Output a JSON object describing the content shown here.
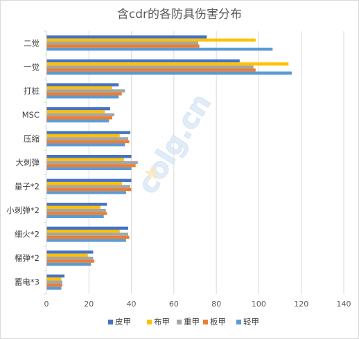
{
  "chart_data": {
    "type": "bar",
    "orientation": "horizontal",
    "title": "含cdr的各防具伤害分布",
    "xlabel": "",
    "ylabel": "",
    "xlim": [
      0,
      140
    ],
    "xticks": [
      0,
      20,
      40,
      60,
      80,
      100,
      120,
      140
    ],
    "grid": true,
    "legend_position": "bottom",
    "categories": [
      "二觉",
      "一觉",
      "打桩",
      "MSC",
      "压缩",
      "大刺弹",
      "量子*2",
      "小刺弹*2",
      "细火*2",
      "榴弹*2",
      "蓄电*3"
    ],
    "series": [
      {
        "name": "皮甲",
        "color": "#4472c4",
        "values": [
          75.5,
          91,
          34,
          30,
          39.5,
          40,
          40,
          28.5,
          38.5,
          22,
          8.5
        ]
      },
      {
        "name": "布甲",
        "color": "#ffc000",
        "values": [
          98.5,
          114,
          31,
          27.5,
          34.5,
          36.5,
          35.5,
          25.5,
          34.5,
          19.5,
          7
        ]
      },
      {
        "name": "重甲",
        "color": "#a5a5a5",
        "values": [
          71.5,
          97.5,
          37,
          32,
          38.5,
          43,
          39.5,
          28,
          38.5,
          22,
          7.5
        ]
      },
      {
        "name": "板甲",
        "color": "#ed7d31",
        "values": [
          72,
          98.5,
          35.5,
          31,
          39,
          42,
          40,
          28.5,
          39,
          22.5,
          7.5
        ]
      },
      {
        "name": "轻甲",
        "color": "#5b9bd5",
        "values": [
          106.5,
          115.5,
          34,
          29.5,
          37,
          40,
          37.5,
          27,
          37.5,
          21,
          7
        ]
      }
    ]
  },
  "watermark": {
    "text": "colg.cn"
  }
}
